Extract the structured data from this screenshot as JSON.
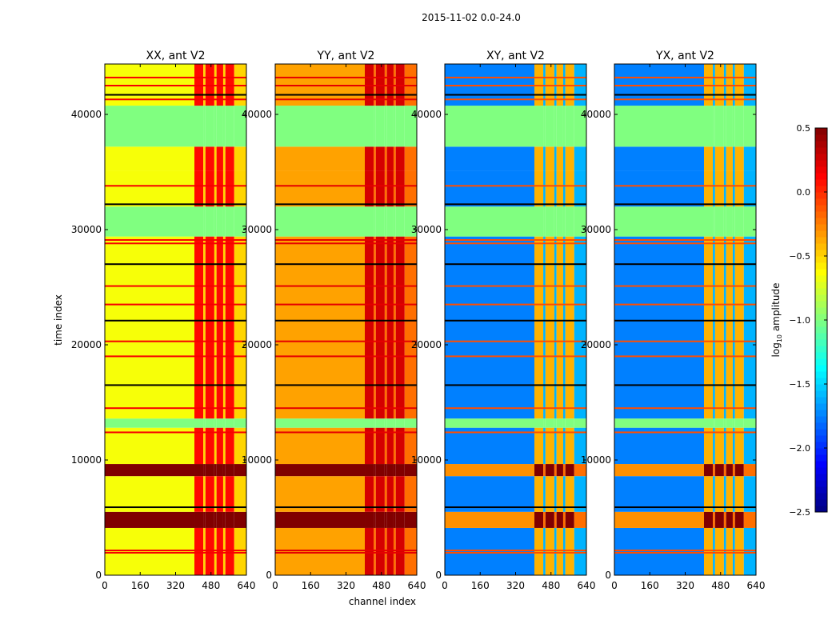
{
  "chart_data": {
    "type": "heatmap",
    "title": "2015-11-02 0.0-24.0",
    "xlabel": "channel index",
    "ylabel": "time index",
    "xlim": [
      0,
      640
    ],
    "ylim": [
      0,
      44375
    ],
    "xticks": [
      "0",
      "160",
      "320",
      "480",
      "640"
    ],
    "xtick_values": [
      0,
      160,
      320,
      480,
      640
    ],
    "yticks": [
      "0",
      "10000",
      "20000",
      "30000",
      "40000"
    ],
    "ytick_values": [
      0,
      10000,
      20000,
      30000,
      40000
    ],
    "colorbar": {
      "label_main": "log",
      "label_sub": "10",
      "label_rest": " amplitude",
      "colormap": "jet",
      "range": [
        -2.5,
        0.5
      ],
      "ticks": [
        "0.5",
        "0.0",
        "−0.5",
        "−1.0",
        "−1.5",
        "−2.0",
        "−2.5"
      ],
      "tick_values": [
        0.5,
        0.0,
        -0.5,
        -1.0,
        -1.5,
        -2.0,
        -2.5
      ]
    },
    "time_bands": [
      {
        "t": [
          0,
          4100
        ],
        "kind": "data"
      },
      {
        "t": [
          4100,
          5500
        ],
        "kind": "strong"
      },
      {
        "t": [
          5500,
          8600
        ],
        "kind": "data"
      },
      {
        "t": [
          8600,
          9650
        ],
        "kind": "strong"
      },
      {
        "t": [
          9650,
          12800
        ],
        "kind": "data"
      },
      {
        "t": [
          12800,
          13600
        ],
        "kind": "flag"
      },
      {
        "t": [
          13600,
          29400
        ],
        "kind": "data"
      },
      {
        "t": [
          29400,
          32000
        ],
        "kind": "flag"
      },
      {
        "t": [
          32000,
          35100
        ],
        "kind": "data"
      },
      {
        "t": [
          35100,
          37200
        ],
        "kind": "data"
      },
      {
        "t": [
          37200,
          40760
        ],
        "kind": "flag"
      },
      {
        "t": [
          40760,
          44375
        ],
        "kind": "data"
      }
    ],
    "rfi_channels": [
      [
        405,
        445
      ],
      [
        455,
        495
      ],
      [
        505,
        535
      ],
      [
        545,
        585
      ]
    ],
    "flag_value": -1.0,
    "line_times": [
      1950,
      2150,
      5900,
      12400,
      14500,
      16500,
      19000,
      20300,
      22100,
      23500,
      25100,
      27000,
      28800,
      29100,
      32200,
      33800,
      41300,
      41700,
      42500,
      43200
    ],
    "panels": [
      {
        "title": "XX, ant V2",
        "base": -0.65,
        "rfi": 0.1,
        "strong": 0.5,
        "strong_rfi": 0.5,
        "line": 0.15
      },
      {
        "title": "YY, ant V2",
        "base": -0.35,
        "rfi": 0.25,
        "strong": 0.5,
        "strong_rfi": 0.5,
        "line": 0.2
      },
      {
        "title": "XY, ant V2",
        "base": -1.75,
        "rfi": -0.4,
        "strong": -0.3,
        "strong_rfi": 0.5,
        "line": -0.1
      },
      {
        "title": "YX, ant V2",
        "base": -1.75,
        "rfi": -0.4,
        "strong": -0.3,
        "strong_rfi": 0.5,
        "line": -0.1
      }
    ]
  }
}
